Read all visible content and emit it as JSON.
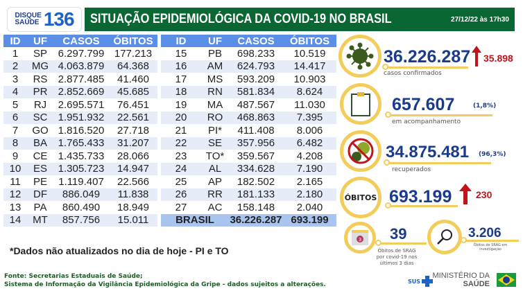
{
  "logo": {
    "line1": "DISQUE",
    "line2": "SAÚDE",
    "number": "136"
  },
  "header": {
    "title": "SITUAÇÃO EPIDEMIOLÓGICA DA COVID-19 NO BRASIL",
    "date": "27/12/22 às 17h30"
  },
  "table": {
    "headers": [
      "ID",
      "UF",
      "CASOS",
      "ÓBITOS"
    ],
    "left": [
      [
        "1",
        "SP",
        "6.297.799",
        "177.213"
      ],
      [
        "2",
        "MG",
        "4.063.879",
        "64.368"
      ],
      [
        "3",
        "RS",
        "2.877.485",
        "41.460"
      ],
      [
        "4",
        "PR",
        "2.852.669",
        "45.685"
      ],
      [
        "5",
        "RJ",
        "2.695.571",
        "76.451"
      ],
      [
        "6",
        "SC",
        "1.951.932",
        "22.561"
      ],
      [
        "7",
        "GO",
        "1.816.520",
        "27.718"
      ],
      [
        "8",
        "BA",
        "1.765.433",
        "31.207"
      ],
      [
        "9",
        "CE",
        "1.435.733",
        "28.066"
      ],
      [
        "10",
        "ES",
        "1.305.723",
        "14.947"
      ],
      [
        "11",
        "PE",
        "1.119.407",
        "22.566"
      ],
      [
        "12",
        "DF",
        "886.049",
        "11.838"
      ],
      [
        "13",
        "PA",
        "860.490",
        "18.949"
      ],
      [
        "14",
        "MT",
        "857.756",
        "15.011"
      ]
    ],
    "right": [
      [
        "15",
        "PB",
        "698.233",
        "10.519"
      ],
      [
        "16",
        "AM",
        "624.793",
        "14.417"
      ],
      [
        "17",
        "MS",
        "593.209",
        "10.903"
      ],
      [
        "18",
        "RN",
        "581.834",
        "8.624"
      ],
      [
        "19",
        "MA",
        "487.567",
        "11.030"
      ],
      [
        "20",
        "RO",
        "468.863",
        "7.395"
      ],
      [
        "21",
        "PI*",
        "411.408",
        "8.006"
      ],
      [
        "22",
        "SE",
        "357.956",
        "6.482"
      ],
      [
        "23",
        "TO*",
        "359.567",
        "4.208"
      ],
      [
        "24",
        "AL",
        "334.628",
        "7.190"
      ],
      [
        "25",
        "AP",
        "182.502",
        "2.165"
      ],
      [
        "26",
        "RR",
        "181.133",
        "2.180"
      ],
      [
        "27",
        "AC",
        "158.148",
        "2.040"
      ]
    ],
    "total": {
      "label": "BRASIL",
      "casos": "36.226.287",
      "obitos": "693.199"
    }
  },
  "note": "*Dados não atualizados no dia de hoje - PI e TO",
  "stats": {
    "confirmados": {
      "value": "36.226.287",
      "delta": "35.898",
      "label": "casos confirmados",
      "icon": "virus-icon"
    },
    "acompanhamento": {
      "value": "657.607",
      "pct": "(1,8%)",
      "label": "em acompanhamento",
      "icon": "clipboard-icon"
    },
    "recuperados": {
      "value": "34.875.481",
      "pct": "(96,3%)",
      "label": "recuperados",
      "icon": "no-virus-icon"
    },
    "obitos": {
      "badge": "ÓBITOS",
      "value": "693.199",
      "delta": "230"
    },
    "srag": {
      "value": "39",
      "label": "Óbitos de SRAG por covid-19 nos últimos 3 dias",
      "cal": "3"
    },
    "investigacao": {
      "value": "3.206",
      "label": "Óbitos de SRAG em investigação"
    }
  },
  "footer": {
    "line1": "Fonte: Secretarias Estaduais de Saúde;",
    "line2": "Sistema de Informação da Vigilância Epidemiológica da Gripe - dados sujeitos a alterações.",
    "sus": "SUS",
    "ministry1": "MINISTÉRIO DA",
    "ministry2": "SAÚDE"
  },
  "colors": {
    "green": "#0a6632",
    "blue": "#5b8ee6",
    "navy": "#1a3a8c",
    "red": "#c0141b",
    "yellow": "#f2cd5c"
  }
}
